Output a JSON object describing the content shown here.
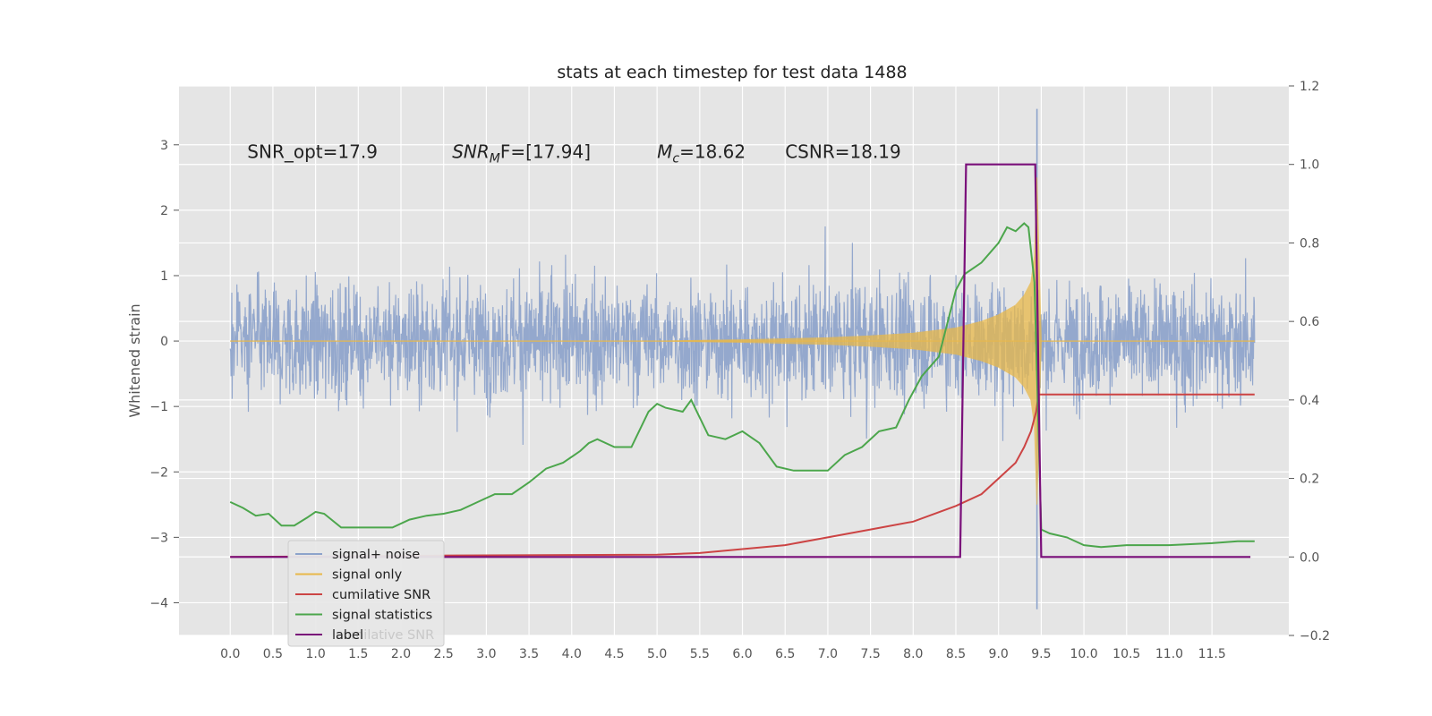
{
  "chart_data": {
    "type": "line",
    "title": "stats at each timestep for test data 1488",
    "ylabel": "Whitened strain",
    "xlabel": "",
    "xlim": [
      -0.6,
      12.4
    ],
    "ylim": [
      -4.5,
      3.9
    ],
    "y2lim": [
      -0.2,
      1.2
    ],
    "grid": true,
    "legend_position": "lower-left",
    "x_ticks": [
      "0.0",
      "0.5",
      "1.0",
      "1.5",
      "2.0",
      "2.5",
      "3.0",
      "3.5",
      "4.0",
      "4.5",
      "5.0",
      "5.5",
      "6.0",
      "6.5",
      "7.0",
      "7.5",
      "8.0",
      "8.5",
      "9.0",
      "9.5",
      "10.0",
      "10.5",
      "11.0",
      "11.5"
    ],
    "y_ticks": [
      "−4",
      "−3",
      "−2",
      "−1",
      "0",
      "1",
      "2",
      "3"
    ],
    "y2_ticks": [
      "−0.2",
      "0.0",
      "0.2",
      "0.4",
      "0.6",
      "0.8",
      "1.0",
      "1.2"
    ],
    "annotations": [
      {
        "text": "SNR_opt=17.9",
        "x": 0.2,
        "y": 2.8
      },
      {
        "prefix": "SNR",
        "sub": "M",
        "suffix": "F=[17.94]",
        "x": 2.6,
        "y": 2.8
      },
      {
        "prefix": "M",
        "sub": "c",
        "suffix": "=18.62",
        "x": 5.0,
        "y": 2.8
      },
      {
        "text": "CSNR=18.19",
        "x": 6.5,
        "y": 2.8
      }
    ],
    "colors": {
      "signal_noise": "#8da3cb",
      "signal_only": "#e8b84a",
      "cumulative_snr": "#cc4444",
      "signal_statistics": "#4ca64c",
      "label": "#7a0f7a",
      "plot_bg": "#e5e5e5",
      "grid": "#ffffff"
    },
    "series": [
      {
        "name": "signal+ noise",
        "axis": "left",
        "description_range": [
          -1.5,
          1.6
        ],
        "x_range": [
          0.0,
          12.0
        ],
        "spikes": [
          {
            "x": 9.45,
            "y_max": 3.55,
            "y_min": -4.1
          }
        ]
      },
      {
        "name": "signal only",
        "axis": "left",
        "x": [
          0.0,
          5.0,
          6.0,
          7.0,
          7.5,
          8.0,
          8.5,
          8.8,
          9.0,
          9.2,
          9.3,
          9.38,
          9.42,
          9.45,
          9.5,
          12.0
        ],
        "envelope": [
          0.0,
          0.0,
          0.02,
          0.05,
          0.08,
          0.12,
          0.2,
          0.3,
          0.4,
          0.55,
          0.7,
          0.9,
          1.3,
          2.5,
          0.0,
          0.0
        ]
      },
      {
        "name": "cumilative SNR",
        "axis": "right",
        "x": [
          0.0,
          1.0,
          2.0,
          3.0,
          4.0,
          5.0,
          5.5,
          6.0,
          6.5,
          7.0,
          7.5,
          8.0,
          8.5,
          8.8,
          9.0,
          9.2,
          9.3,
          9.38,
          9.44,
          9.47,
          10.0,
          11.0,
          12.0
        ],
        "y": [
          0.0,
          0.001,
          0.003,
          0.004,
          0.005,
          0.006,
          0.01,
          0.02,
          0.03,
          0.05,
          0.07,
          0.09,
          0.13,
          0.16,
          0.2,
          0.24,
          0.28,
          0.32,
          0.37,
          0.414,
          0.414,
          0.414,
          0.414
        ]
      },
      {
        "name": "signal statistics",
        "axis": "right",
        "x": [
          0.0,
          0.15,
          0.3,
          0.45,
          0.6,
          0.75,
          0.9,
          1.0,
          1.1,
          1.3,
          1.5,
          1.7,
          1.9,
          2.1,
          2.3,
          2.5,
          2.7,
          2.9,
          3.1,
          3.3,
          3.5,
          3.7,
          3.9,
          4.1,
          4.2,
          4.3,
          4.5,
          4.7,
          4.9,
          5.0,
          5.1,
          5.3,
          5.4,
          5.6,
          5.8,
          6.0,
          6.2,
          6.4,
          6.6,
          6.8,
          7.0,
          7.2,
          7.4,
          7.6,
          7.8,
          7.95,
          8.1,
          8.3,
          8.5,
          8.6,
          8.8,
          9.0,
          9.1,
          9.2,
          9.3,
          9.35,
          9.42,
          9.5,
          9.6,
          9.8,
          10.0,
          10.2,
          10.5,
          11.0,
          11.5,
          11.8,
          12.0
        ],
        "y": [
          0.14,
          0.125,
          0.105,
          0.11,
          0.08,
          0.08,
          0.1,
          0.115,
          0.11,
          0.075,
          0.075,
          0.075,
          0.075,
          0.095,
          0.105,
          0.11,
          0.12,
          0.14,
          0.16,
          0.16,
          0.19,
          0.225,
          0.24,
          0.27,
          0.29,
          0.3,
          0.28,
          0.28,
          0.37,
          0.39,
          0.38,
          0.37,
          0.4,
          0.31,
          0.3,
          0.32,
          0.29,
          0.23,
          0.22,
          0.22,
          0.22,
          0.26,
          0.28,
          0.32,
          0.33,
          0.4,
          0.46,
          0.51,
          0.68,
          0.72,
          0.75,
          0.8,
          0.84,
          0.83,
          0.85,
          0.84,
          0.7,
          0.07,
          0.06,
          0.05,
          0.03,
          0.025,
          0.03,
          0.03,
          0.035,
          0.04,
          0.04
        ]
      },
      {
        "name": "label",
        "axis": "right",
        "x": [
          0.0,
          8.55,
          8.62,
          9.43,
          9.5,
          11.95
        ],
        "y": [
          0.0,
          0.0,
          1.0,
          1.0,
          0.0,
          0.0
        ]
      }
    ],
    "legend": [
      "signal+ noise",
      "signal only",
      "cumilative SNR",
      "signal statistics",
      "label"
    ],
    "legend_ghost_text": "cumilative SNR"
  }
}
